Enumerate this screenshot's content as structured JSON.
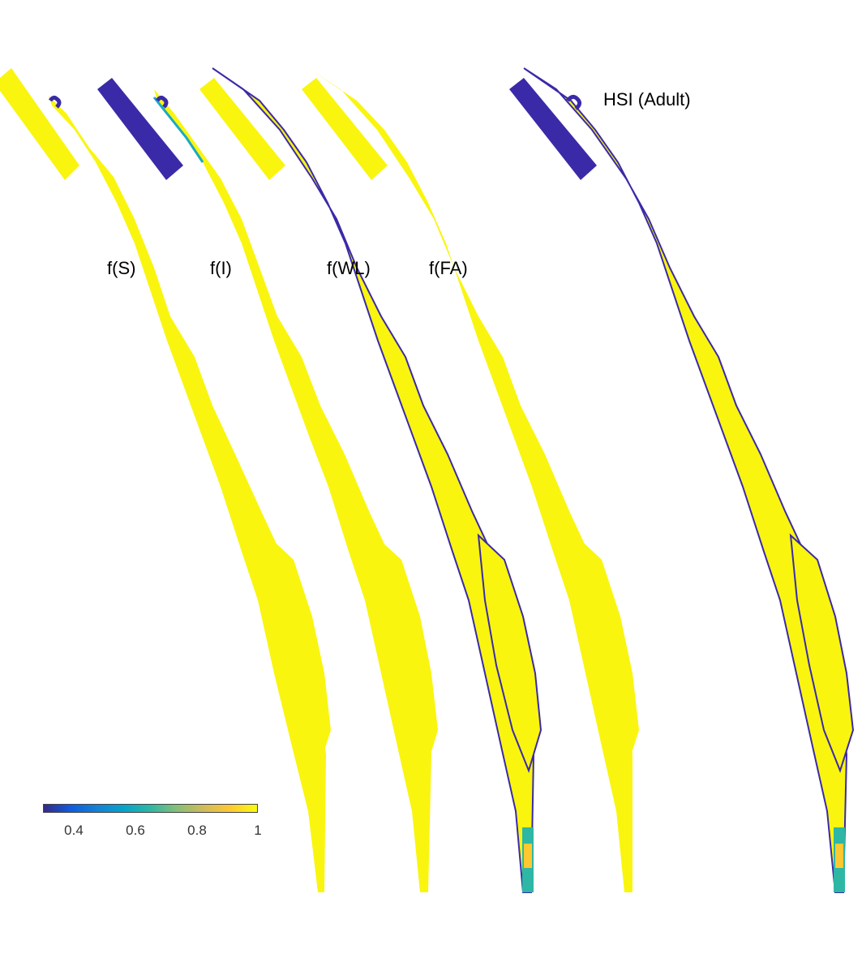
{
  "panels": [
    {
      "key": "fs",
      "label": "f(S)"
    },
    {
      "key": "fi",
      "label": "f(I)"
    },
    {
      "key": "fwl",
      "label": "f(WL)"
    },
    {
      "key": "ffa",
      "label": "f(FA)"
    },
    {
      "key": "hsi",
      "label": "HSI (Adult)"
    }
  ],
  "colorbar": {
    "colormap": "parula",
    "range": [
      0.3,
      1
    ],
    "ticks": [
      "0.4",
      "0.6",
      "0.8",
      "1"
    ],
    "colors": [
      "#352a87",
      "#0f5cdd",
      "#1481d6",
      "#06a4ca",
      "#2eb7a4",
      "#87bf77",
      "#d1bb59",
      "#fec832",
      "#f9fb0e"
    ]
  },
  "colors": {
    "high": "#f9f50f",
    "low": "#3a2aa8",
    "mid": "#1aa9c6"
  }
}
